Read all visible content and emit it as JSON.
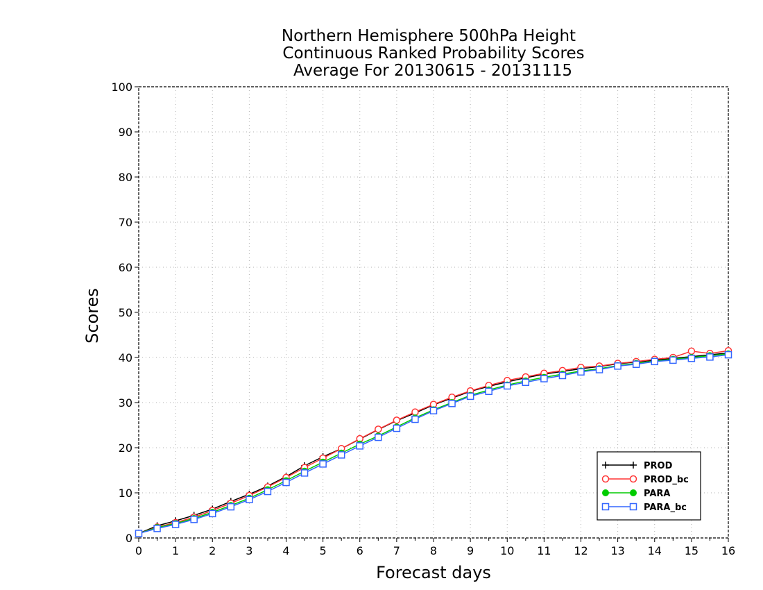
{
  "chart_data": {
    "type": "line",
    "title": [
      "Northern Hemisphere 500hPa Height",
      "Continuous Ranked Probability Scores",
      "Average For 20130615 - 20131115"
    ],
    "xlabel": "Forecast days",
    "ylabel": "Scores",
    "xlim": [
      0,
      16
    ],
    "ylim": [
      0,
      100
    ],
    "xticks": [
      "0",
      "1",
      "2",
      "3",
      "4",
      "5",
      "6",
      "7",
      "8",
      "9",
      "10",
      "11",
      "12",
      "13",
      "14",
      "15",
      "16"
    ],
    "yticks": [
      "0",
      "10",
      "20",
      "30",
      "40",
      "50",
      "60",
      "70",
      "80",
      "90",
      "100"
    ],
    "grid": true,
    "legend_position": "lower-right",
    "x": [
      0,
      0.5,
      1,
      1.5,
      2,
      2.5,
      3,
      3.5,
      4,
      4.5,
      5,
      5.5,
      6,
      6.5,
      7,
      7.5,
      8,
      8.5,
      9,
      9.5,
      10,
      10.5,
      11,
      11.5,
      12,
      12.5,
      13,
      13.5,
      14,
      14.5,
      15,
      15.5,
      16
    ],
    "series": [
      {
        "name": "PROD",
        "color": "#000000",
        "marker": "plus",
        "values": [
          1.0,
          2.7,
          3.8,
          5.0,
          6.4,
          8.1,
          9.7,
          11.5,
          13.6,
          16.0,
          18.0,
          19.8,
          21.9,
          24.0,
          26.0,
          27.7,
          29.5,
          31.0,
          32.5,
          33.6,
          34.6,
          35.5,
          36.3,
          36.9,
          37.5,
          38.0,
          38.6,
          39.0,
          39.4,
          39.8,
          40.2,
          40.6,
          41.0
        ]
      },
      {
        "name": "PROD_bc",
        "color": "#ff3333",
        "marker": "open-circle",
        "values": [
          1.0,
          2.4,
          3.4,
          4.6,
          6.1,
          7.7,
          9.4,
          11.3,
          13.4,
          15.6,
          17.7,
          19.8,
          22.0,
          24.1,
          26.1,
          27.9,
          29.6,
          31.2,
          32.6,
          33.8,
          34.9,
          35.7,
          36.5,
          37.1,
          37.8,
          38.1,
          38.7,
          39.1,
          39.6,
          40.0,
          41.4,
          40.9,
          41.5
        ]
      },
      {
        "name": "PARA",
        "color": "#00cc00",
        "marker": "filled-circle",
        "values": [
          1.0,
          2.3,
          3.2,
          4.3,
          5.7,
          7.2,
          8.8,
          10.7,
          12.7,
          14.8,
          16.8,
          18.8,
          20.8,
          22.6,
          24.6,
          26.6,
          28.4,
          30.0,
          31.6,
          32.8,
          33.9,
          34.8,
          35.6,
          36.3,
          37.0,
          37.5,
          38.2,
          38.7,
          39.2,
          39.6,
          40.0,
          40.4,
          40.8
        ]
      },
      {
        "name": "PARA_bc",
        "color": "#3366ff",
        "marker": "open-square",
        "values": [
          1.0,
          2.1,
          3.0,
          4.1,
          5.4,
          6.9,
          8.5,
          10.3,
          12.3,
          14.4,
          16.4,
          18.4,
          20.4,
          22.3,
          24.3,
          26.3,
          28.2,
          29.8,
          31.4,
          32.5,
          33.7,
          34.5,
          35.3,
          36.0,
          36.8,
          37.3,
          38.1,
          38.5,
          39.1,
          39.4,
          39.8,
          40.1,
          40.6
        ]
      }
    ]
  }
}
